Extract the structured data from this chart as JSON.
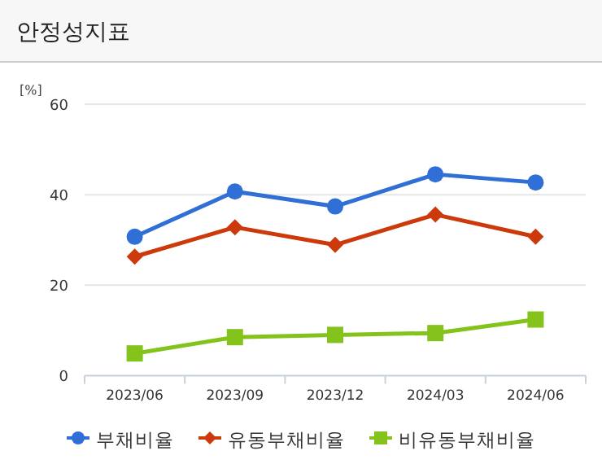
{
  "chart_data": {
    "type": "line",
    "title": "안정성지표",
    "ylabel": "[%]",
    "categories": [
      "2023/06",
      "2023/09",
      "2023/12",
      "2024/03",
      "2024/06"
    ],
    "series": [
      {
        "name": "부채비율",
        "color": "#2f6fd6",
        "marker": "circle",
        "values": [
          30.7,
          40.7,
          37.4,
          44.5,
          42.7
        ]
      },
      {
        "name": "유동부채비율",
        "color": "#cc3a0b",
        "marker": "diamond",
        "values": [
          26.3,
          32.8,
          28.9,
          35.6,
          30.7
        ]
      },
      {
        "name": "비유동부채비율",
        "color": "#84c31c",
        "marker": "square",
        "values": [
          4.9,
          8.5,
          9.0,
          9.4,
          12.4
        ]
      }
    ],
    "ylim": [
      0,
      60
    ],
    "yticks": [
      0,
      20,
      40,
      60
    ],
    "grid": "y",
    "legend": "bottom"
  }
}
